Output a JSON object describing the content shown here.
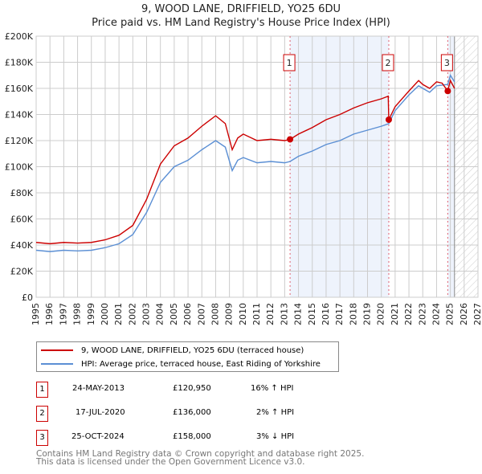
{
  "chart_data": {
    "type": "line",
    "title": "9, WOOD LANE, DRIFFIELD, YO25 6DU",
    "subtitle": "Price paid vs. HM Land Registry's House Price Index (HPI)",
    "xlim": [
      1995,
      2027
    ],
    "ylim": [
      0,
      200000
    ],
    "x_ticks": [
      "1995",
      "1996",
      "1997",
      "1998",
      "1999",
      "2000",
      "2001",
      "2002",
      "2003",
      "2004",
      "2005",
      "2006",
      "2007",
      "2008",
      "2009",
      "2010",
      "2011",
      "2012",
      "2013",
      "2014",
      "2015",
      "2016",
      "2017",
      "2018",
      "2019",
      "2020",
      "2021",
      "2022",
      "2023",
      "2024",
      "2025",
      "2026",
      "2027"
    ],
    "y_ticks": [
      "£0",
      "£20K",
      "£40K",
      "£60K",
      "£80K",
      "£100K",
      "£120K",
      "£140K",
      "£160K",
      "£180K",
      "£200K"
    ],
    "grid": true,
    "series": [
      {
        "name": "9, WOOD LANE, DRIFFIELD, YO25 6DU (terraced house)",
        "color": "#cc0000",
        "x": [
          1995,
          1996,
          1997,
          1998,
          1999,
          2000,
          2001,
          2002,
          2003,
          2004,
          2005,
          2006,
          2007,
          2008,
          2008.7,
          2009.2,
          2009.6,
          2010,
          2011,
          2012,
          2013,
          2013.39,
          2014,
          2015,
          2016,
          2017,
          2018,
          2019,
          2020,
          2020.5,
          2020.54,
          2021,
          2022,
          2022.7,
          2023,
          2023.5,
          2024,
          2024.4,
          2024.81,
          2025,
          2025.3
        ],
        "y": [
          42000,
          41000,
          42000,
          41500,
          42000,
          44000,
          47500,
          55000,
          75000,
          102000,
          116000,
          122000,
          131000,
          139000,
          133000,
          113000,
          122000,
          125000,
          120000,
          121000,
          120000,
          120950,
          125000,
          130000,
          136000,
          140000,
          145000,
          149000,
          152000,
          154000,
          136000,
          146000,
          158000,
          166000,
          163000,
          160000,
          165000,
          164000,
          158000,
          166000,
          160000
        ]
      },
      {
        "name": "HPI: Average price, terraced house, East Riding of Yorkshire",
        "color": "#5b8fd4",
        "x": [
          1995,
          1996,
          1997,
          1998,
          1999,
          2000,
          2001,
          2002,
          2003,
          2004,
          2005,
          2006,
          2007,
          2008,
          2008.7,
          2009.2,
          2009.6,
          2010,
          2011,
          2012,
          2013,
          2013.39,
          2014,
          2015,
          2016,
          2017,
          2018,
          2019,
          2020,
          2020.54,
          2021,
          2022,
          2022.7,
          2023,
          2023.5,
          2024,
          2024.81,
          2025,
          2025.3
        ],
        "y": [
          36000,
          35000,
          36000,
          35500,
          36000,
          38000,
          41000,
          48000,
          65000,
          88000,
          100000,
          105000,
          113000,
          120000,
          115000,
          97000,
          105000,
          107000,
          103000,
          104000,
          103000,
          104000,
          108000,
          112000,
          117000,
          120000,
          125000,
          128000,
          131000,
          133000,
          143000,
          155000,
          162000,
          160000,
          157000,
          162000,
          163000,
          170000,
          165000
        ]
      }
    ],
    "sales": [
      {
        "label": "1",
        "x": 2013.39,
        "price": 120950
      },
      {
        "label": "2",
        "x": 2020.54,
        "price": 136000
      },
      {
        "label": "3",
        "x": 2024.81,
        "price": 158000
      }
    ],
    "data_end": 2025.3,
    "legend_position": "below"
  },
  "table": [
    {
      "num": "1",
      "date": "24-MAY-2013",
      "price": "£120,950",
      "hpi": "16% ↑ HPI"
    },
    {
      "num": "2",
      "date": "17-JUL-2020",
      "price": "£136,000",
      "hpi": "2% ↑ HPI"
    },
    {
      "num": "3",
      "date": "25-OCT-2024",
      "price": "£158,000",
      "hpi": "3% ↓ HPI"
    }
  ],
  "footer": [
    "Contains HM Land Registry data © Crown copyright and database right 2025.",
    "This data is licensed under the Open Government Licence v3.0."
  ]
}
